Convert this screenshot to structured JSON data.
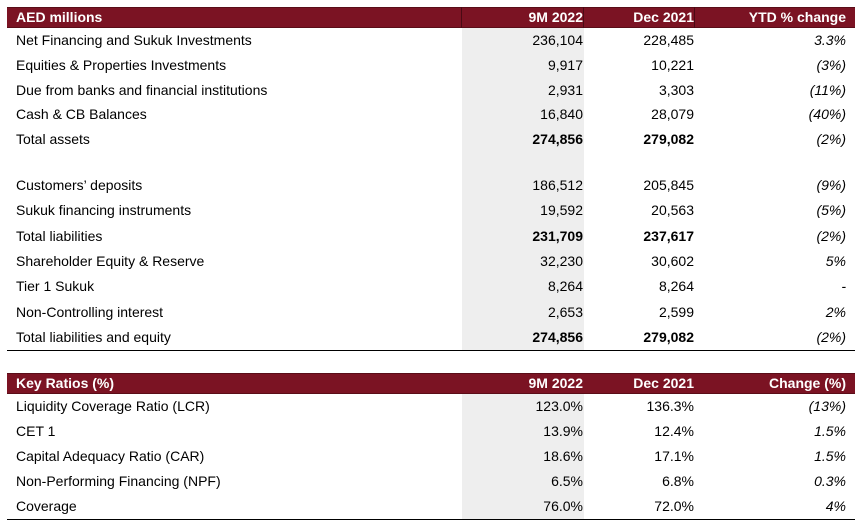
{
  "balance": {
    "header": {
      "label": "AED millions",
      "col1": "9M 2022",
      "col2": "Dec 2021",
      "col3": "YTD % change"
    },
    "rows": [
      {
        "label": "Net Financing and Sukuk Investments",
        "v1": "236,104",
        "v2": "228,485",
        "v3": "3.3%"
      },
      {
        "label": "Equities & Properties Investments",
        "v1": "9,917",
        "v2": "10,221",
        "v3": "(3%)"
      },
      {
        "label": "Due from banks and financial institutions",
        "v1": "2,931",
        "v2": "3,303",
        "v3": "(11%)"
      },
      {
        "label": "Cash & CB Balances",
        "v1": "16,840",
        "v2": "28,079",
        "v3": "(40%)"
      },
      {
        "label": "Total assets",
        "v1": "274,856",
        "v2": "279,082",
        "v3": "(2%)"
      },
      {
        "label": "Customers’ deposits",
        "v1": "186,512",
        "v2": "205,845",
        "v3": "(9%)"
      },
      {
        "label": "Sukuk financing instruments",
        "v1": "19,592",
        "v2": "20,563",
        "v3": "(5%)"
      },
      {
        "label": "Total liabilities",
        "v1": "231,709",
        "v2": "237,617",
        "v3": "(2%)"
      },
      {
        "label": "Shareholder Equity & Reserve",
        "v1": "32,230",
        "v2": "30,602",
        "v3": "5%"
      },
      {
        "label": "Tier 1 Sukuk",
        "v1": "8,264",
        "v2": "8,264",
        "v3": "-"
      },
      {
        "label": "Non-Controlling interest",
        "v1": "2,653",
        "v2": "2,599",
        "v3": "2%"
      },
      {
        "label": "Total liabilities and equity",
        "v1": "274,856",
        "v2": "279,082",
        "v3": "(2%)"
      }
    ]
  },
  "ratios": {
    "header": {
      "label": "Key Ratios (%)",
      "col1": "9M 2022",
      "col2": "Dec 2021",
      "col3": "Change (%)"
    },
    "rows": [
      {
        "label": "Liquidity Coverage Ratio (LCR)",
        "v1": "123.0%",
        "v2": "136.3%",
        "v3": "(13%)"
      },
      {
        "label": "CET 1",
        "v1": "13.9%",
        "v2": "12.4%",
        "v3": "1.5%"
      },
      {
        "label": "Capital Adequacy Ratio (CAR)",
        "v1": "18.6%",
        "v2": "17.1%",
        "v3": "1.5%"
      },
      {
        "label": "Non-Performing Financing (NPF)",
        "v1": "6.5%",
        "v2": "6.8%",
        "v3": "0.3%"
      },
      {
        "label": "Coverage",
        "v1": "76.0%",
        "v2": "72.0%",
        "v3": "4%"
      }
    ]
  },
  "colors": {
    "header_bg": "#7b1323",
    "shade": "#eeeeee"
  }
}
